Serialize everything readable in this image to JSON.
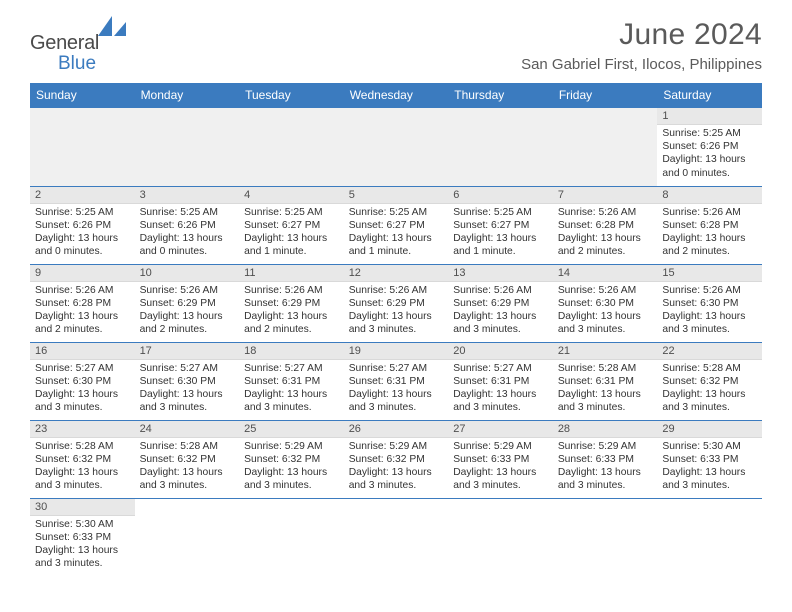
{
  "logo": {
    "text1": "General",
    "text2": "Blue",
    "shape_color": "#3b7bbf",
    "text1_color": "#4a4a4a"
  },
  "title": "June 2024",
  "location": "San Gabriel First, Ilocos, Philippines",
  "header_bg": "#3b7bbf",
  "daybar_bg": "#e8e8e8",
  "row_border": "#3b7bbf",
  "weekdays": [
    "Sunday",
    "Monday",
    "Tuesday",
    "Wednesday",
    "Thursday",
    "Friday",
    "Saturday"
  ],
  "lead_blanks": 6,
  "days": [
    {
      "n": "1",
      "sr": "5:25 AM",
      "ss": "6:26 PM",
      "dl": "13 hours and 0 minutes."
    },
    {
      "n": "2",
      "sr": "5:25 AM",
      "ss": "6:26 PM",
      "dl": "13 hours and 0 minutes."
    },
    {
      "n": "3",
      "sr": "5:25 AM",
      "ss": "6:26 PM",
      "dl": "13 hours and 0 minutes."
    },
    {
      "n": "4",
      "sr": "5:25 AM",
      "ss": "6:27 PM",
      "dl": "13 hours and 1 minute."
    },
    {
      "n": "5",
      "sr": "5:25 AM",
      "ss": "6:27 PM",
      "dl": "13 hours and 1 minute."
    },
    {
      "n": "6",
      "sr": "5:25 AM",
      "ss": "6:27 PM",
      "dl": "13 hours and 1 minute."
    },
    {
      "n": "7",
      "sr": "5:26 AM",
      "ss": "6:28 PM",
      "dl": "13 hours and 2 minutes."
    },
    {
      "n": "8",
      "sr": "5:26 AM",
      "ss": "6:28 PM",
      "dl": "13 hours and 2 minutes."
    },
    {
      "n": "9",
      "sr": "5:26 AM",
      "ss": "6:28 PM",
      "dl": "13 hours and 2 minutes."
    },
    {
      "n": "10",
      "sr": "5:26 AM",
      "ss": "6:29 PM",
      "dl": "13 hours and 2 minutes."
    },
    {
      "n": "11",
      "sr": "5:26 AM",
      "ss": "6:29 PM",
      "dl": "13 hours and 2 minutes."
    },
    {
      "n": "12",
      "sr": "5:26 AM",
      "ss": "6:29 PM",
      "dl": "13 hours and 3 minutes."
    },
    {
      "n": "13",
      "sr": "5:26 AM",
      "ss": "6:29 PM",
      "dl": "13 hours and 3 minutes."
    },
    {
      "n": "14",
      "sr": "5:26 AM",
      "ss": "6:30 PM",
      "dl": "13 hours and 3 minutes."
    },
    {
      "n": "15",
      "sr": "5:26 AM",
      "ss": "6:30 PM",
      "dl": "13 hours and 3 minutes."
    },
    {
      "n": "16",
      "sr": "5:27 AM",
      "ss": "6:30 PM",
      "dl": "13 hours and 3 minutes."
    },
    {
      "n": "17",
      "sr": "5:27 AM",
      "ss": "6:30 PM",
      "dl": "13 hours and 3 minutes."
    },
    {
      "n": "18",
      "sr": "5:27 AM",
      "ss": "6:31 PM",
      "dl": "13 hours and 3 minutes."
    },
    {
      "n": "19",
      "sr": "5:27 AM",
      "ss": "6:31 PM",
      "dl": "13 hours and 3 minutes."
    },
    {
      "n": "20",
      "sr": "5:27 AM",
      "ss": "6:31 PM",
      "dl": "13 hours and 3 minutes."
    },
    {
      "n": "21",
      "sr": "5:28 AM",
      "ss": "6:31 PM",
      "dl": "13 hours and 3 minutes."
    },
    {
      "n": "22",
      "sr": "5:28 AM",
      "ss": "6:32 PM",
      "dl": "13 hours and 3 minutes."
    },
    {
      "n": "23",
      "sr": "5:28 AM",
      "ss": "6:32 PM",
      "dl": "13 hours and 3 minutes."
    },
    {
      "n": "24",
      "sr": "5:28 AM",
      "ss": "6:32 PM",
      "dl": "13 hours and 3 minutes."
    },
    {
      "n": "25",
      "sr": "5:29 AM",
      "ss": "6:32 PM",
      "dl": "13 hours and 3 minutes."
    },
    {
      "n": "26",
      "sr": "5:29 AM",
      "ss": "6:32 PM",
      "dl": "13 hours and 3 minutes."
    },
    {
      "n": "27",
      "sr": "5:29 AM",
      "ss": "6:33 PM",
      "dl": "13 hours and 3 minutes."
    },
    {
      "n": "28",
      "sr": "5:29 AM",
      "ss": "6:33 PM",
      "dl": "13 hours and 3 minutes."
    },
    {
      "n": "29",
      "sr": "5:30 AM",
      "ss": "6:33 PM",
      "dl": "13 hours and 3 minutes."
    },
    {
      "n": "30",
      "sr": "5:30 AM",
      "ss": "6:33 PM",
      "dl": "13 hours and 3 minutes."
    }
  ],
  "labels": {
    "sunrise": "Sunrise:",
    "sunset": "Sunset:",
    "daylight": "Daylight:"
  }
}
